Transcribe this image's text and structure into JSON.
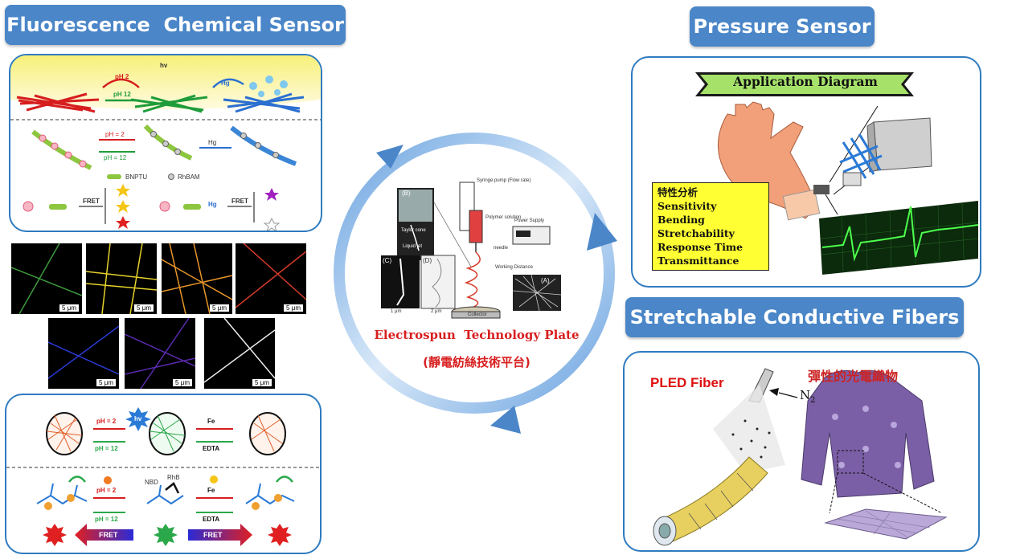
{
  "titles": {
    "fluorescence": "Fluorescence  Chemical Sensor",
    "pressure": "Pressure Sensor",
    "stretchable": "Stretchable Conductive Fibers"
  },
  "fluor_top": {
    "hv": "hv",
    "ph2": "pH 2",
    "ph12": "pH 12",
    "hg": "Hg",
    "ph2b": "pH = 2",
    "ph12b": "pH = 12",
    "hgb": "Hg",
    "bnptu": "BNPTU",
    "rhbam": "RhBAM",
    "fret1": "FRET",
    "fret2": "FRET",
    "hg_plus": "Hg"
  },
  "fiber_tiles": {
    "scale": "5 μm"
  },
  "fluor_bottom": {
    "ph2": "pH = 2",
    "ph12": "pH = 12",
    "hv": "hv",
    "fe": "Fe",
    "edta": "EDTA",
    "ph2b": "pH = 2",
    "ph12b": "pH = 12",
    "nbd": "NBD",
    "rhb": "RhB",
    "feb": "Fe",
    "edtab": "EDTA",
    "fret_left": "FRET",
    "fret_right": "FRET"
  },
  "center": {
    "b": "(B)",
    "taylor": "Taylor cone",
    "liquid": "Liquid jet",
    "c": "(C)",
    "d": "(D)",
    "syringe": "Syringe pump (Flow rate)",
    "polymer": "Polymer solution",
    "power": "Power Supply",
    "needle": "needle",
    "working": "Working Distance",
    "collector": "Collector",
    "a": "(A)",
    "um1": "1 μm",
    "um2": "2 μm",
    "caption_en": "Electrospun  Technology Plate",
    "caption_zh": "(靜電紡絲技術平台)"
  },
  "pressure": {
    "banner": "Application Diagram",
    "traits": [
      "特性分析",
      "Sensitivity",
      "Bending",
      "Stretchability",
      "Response Time",
      "Transmittance"
    ]
  },
  "stretch": {
    "pled": "PLED Fiber",
    "zh": "彈性的光電織物",
    "n2": "N",
    "n2_sub": "2"
  },
  "colors": {
    "pill": "#4a86c8",
    "panel_border": "#2f7bbf",
    "traits_bg": "#ffff33",
    "pled": "#dd1111",
    "zh": "#cc2222"
  }
}
